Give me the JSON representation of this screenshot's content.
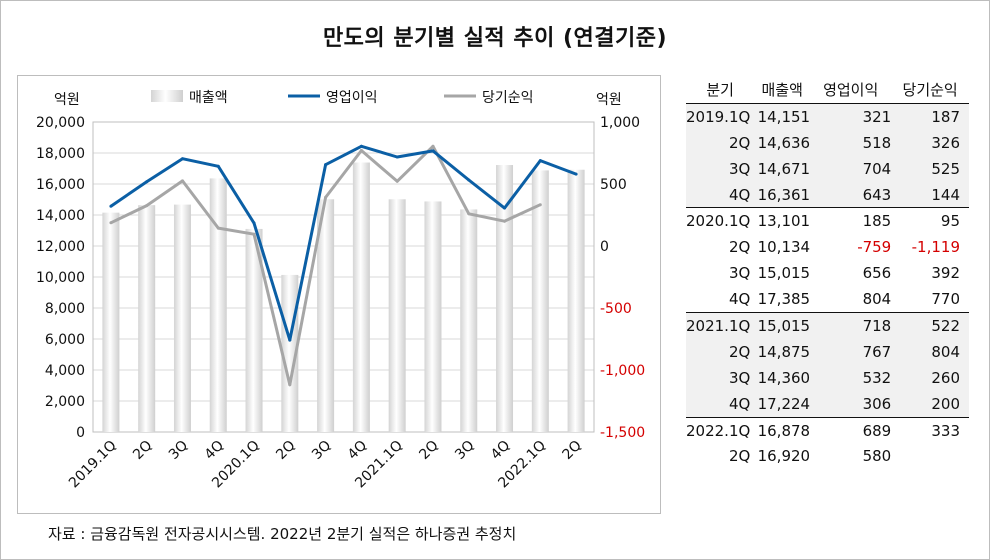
{
  "title": "만도의 분기별 실적 추이 (연결기준)",
  "source": "자료 : 금융감독원 전자공시시스템. 2022년 2분기 실적은 하나증권 추정치",
  "colors": {
    "bar": "#e6e6e6",
    "op_line": "#0b5fa5",
    "net_line": "#a6a6a6",
    "negative": "#d40000",
    "grid": "#d9d9d9"
  },
  "chart_data": {
    "type": "bar+line",
    "categories": [
      "2019.1Q",
      "2Q",
      "3Q",
      "4Q",
      "2020.1Q",
      "2Q",
      "3Q",
      "4Q",
      "2021.1Q",
      "2Q",
      "3Q",
      "4Q",
      "2022.1Q",
      "2Q"
    ],
    "left_axis": {
      "unit": "억원",
      "min": 0,
      "max": 20000,
      "step": 2000,
      "ticks": [
        "0",
        "2,000",
        "4,000",
        "6,000",
        "8,000",
        "10,000",
        "12,000",
        "14,000",
        "16,000",
        "18,000",
        "20,000"
      ]
    },
    "right_axis": {
      "unit": "억원",
      "min": -1500,
      "max": 1000,
      "step": 500,
      "ticks": [
        "-1,500",
        "-1,000",
        "-500",
        "0",
        "500",
        "1,000"
      ]
    },
    "grid": true,
    "legend_position": "top",
    "series": [
      {
        "name": "매출액",
        "type": "bar",
        "axis": "left",
        "values": [
          14151,
          14636,
          14671,
          16361,
          13101,
          10134,
          15015,
          17385,
          15015,
          14875,
          14360,
          17224,
          16878,
          16920
        ]
      },
      {
        "name": "영업이익",
        "type": "line",
        "axis": "right",
        "values": [
          321,
          518,
          704,
          643,
          185,
          -759,
          656,
          804,
          718,
          767,
          532,
          306,
          689,
          580
        ]
      },
      {
        "name": "당기순익",
        "type": "line",
        "axis": "right",
        "values": [
          187,
          326,
          525,
          144,
          95,
          -1119,
          392,
          770,
          522,
          804,
          260,
          200,
          333,
          null
        ]
      }
    ]
  },
  "table": {
    "headers": [
      "분기",
      "매출액",
      "영업이익",
      "당기순익"
    ],
    "rows": [
      [
        "2019.1Q",
        "14,151",
        "321",
        "187"
      ],
      [
        "2Q",
        "14,636",
        "518",
        "326"
      ],
      [
        "3Q",
        "14,671",
        "704",
        "525"
      ],
      [
        "4Q",
        "16,361",
        "643",
        "144"
      ],
      [
        "2020.1Q",
        "13,101",
        "185",
        "95"
      ],
      [
        "2Q",
        "10,134",
        "-759",
        "-1,119"
      ],
      [
        "3Q",
        "15,015",
        "656",
        "392"
      ],
      [
        "4Q",
        "17,385",
        "804",
        "770"
      ],
      [
        "2021.1Q",
        "15,015",
        "718",
        "522"
      ],
      [
        "2Q",
        "14,875",
        "767",
        "804"
      ],
      [
        "3Q",
        "14,360",
        "532",
        "260"
      ],
      [
        "4Q",
        "17,224",
        "306",
        "200"
      ],
      [
        "2022.1Q",
        "16,878",
        "689",
        "333"
      ],
      [
        "2Q",
        "16,920",
        "580",
        ""
      ]
    ]
  }
}
